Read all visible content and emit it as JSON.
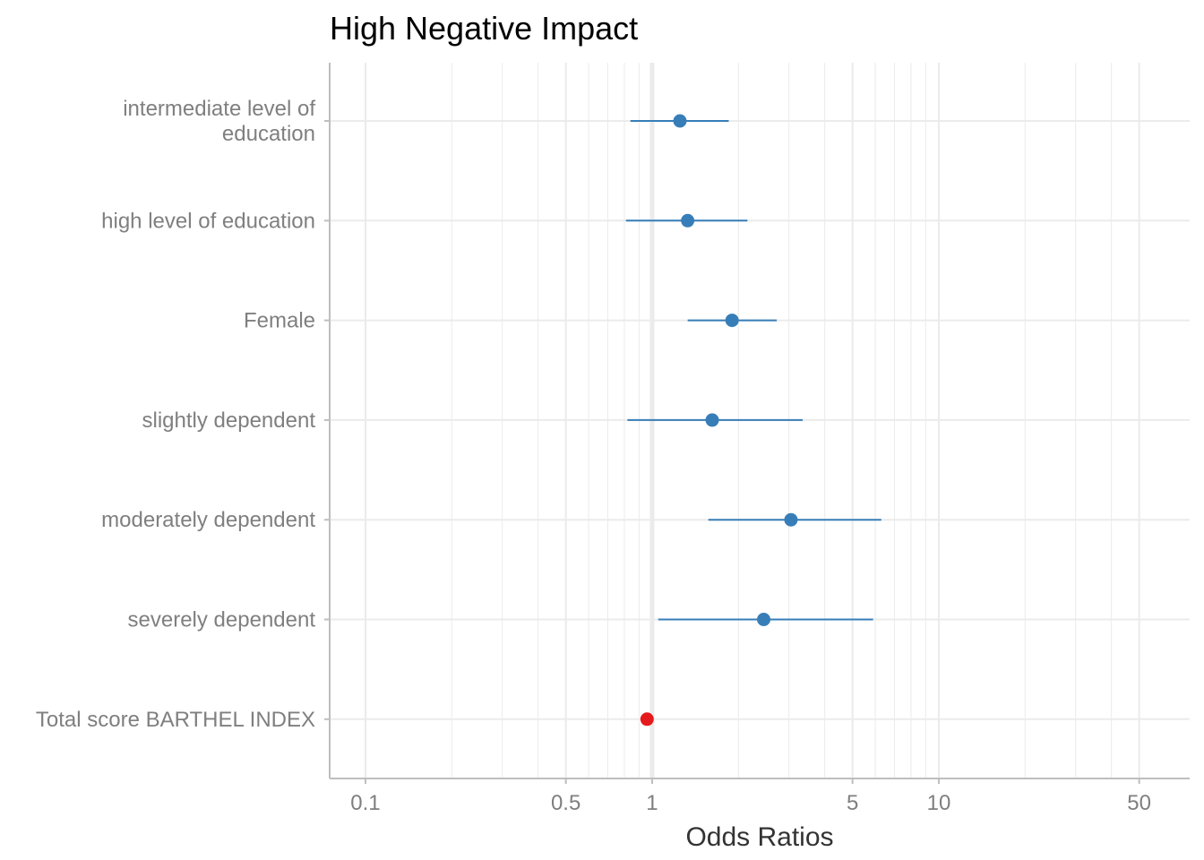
{
  "chart_data": {
    "type": "scatter",
    "subtype": "forest-plot",
    "title": "High Negative Impact",
    "xlabel": "Odds Ratios",
    "ylabel": "",
    "x_scale": "log10",
    "xlim": [
      0.075,
      75
    ],
    "x_ticks": [
      0.1,
      0.5,
      1,
      5,
      10,
      50
    ],
    "x_tick_labels": [
      "0.1",
      "0.5",
      "1",
      "5",
      "10",
      "50"
    ],
    "x_minor_gridlines": [
      0.2,
      0.3,
      0.4,
      0.6,
      0.7,
      0.8,
      0.9,
      2,
      3,
      4,
      6,
      7,
      8,
      9,
      20,
      30,
      40
    ],
    "reference_line": 1,
    "grid": true,
    "legend": "none",
    "colors": {
      "positive": "#377eb8",
      "negative": "#e41a1c",
      "reference_line": "#ebebeb",
      "gridline": "#ebebeb",
      "axis": "#bebebe"
    },
    "rows": [
      {
        "label_lines": [
          "intermediate level of",
          "education"
        ],
        "estimate": 1.25,
        "ci_low": 0.84,
        "ci_high": 1.85,
        "color_key": "positive"
      },
      {
        "label_lines": [
          "high level of education"
        ],
        "estimate": 1.33,
        "ci_low": 0.81,
        "ci_high": 2.15,
        "color_key": "positive"
      },
      {
        "label_lines": [
          "Female"
        ],
        "estimate": 1.9,
        "ci_low": 1.33,
        "ci_high": 2.72,
        "color_key": "positive"
      },
      {
        "label_lines": [
          "slightly dependent"
        ],
        "estimate": 1.62,
        "ci_low": 0.82,
        "ci_high": 3.35,
        "color_key": "positive"
      },
      {
        "label_lines": [
          "moderately dependent"
        ],
        "estimate": 3.05,
        "ci_low": 1.57,
        "ci_high": 6.3,
        "color_key": "positive"
      },
      {
        "label_lines": [
          "severely dependent"
        ],
        "estimate": 2.45,
        "ci_low": 1.05,
        "ci_high": 5.9,
        "color_key": "positive"
      },
      {
        "label_lines": [
          "Total score BARTHEL INDEX"
        ],
        "estimate": 0.96,
        "ci_low": 0.95,
        "ci_high": 0.97,
        "color_key": "negative"
      }
    ]
  }
}
